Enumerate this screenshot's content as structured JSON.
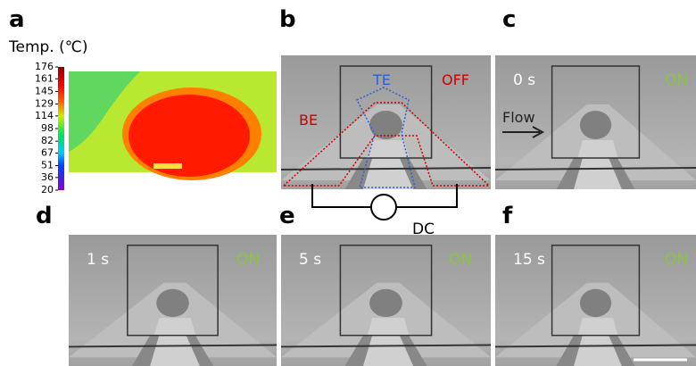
{
  "panels": [
    {
      "label": "a",
      "colorbar": {
        "title": "Temp. (℃)",
        "ticks": [
          176,
          161,
          145,
          129,
          114,
          98,
          82,
          67,
          51,
          36,
          20
        ]
      }
    },
    {
      "label": "b",
      "annotations": [
        "TE",
        "OFF",
        "BE"
      ],
      "circuit": "DC"
    },
    {
      "label": "c",
      "time": "0 s",
      "state": "ON",
      "flow": "Flow"
    },
    {
      "label": "d",
      "time": "1 s",
      "state": "ON"
    },
    {
      "label": "e",
      "time": "5 s",
      "state": "ON"
    },
    {
      "label": "f",
      "time": "15 s",
      "state": "ON"
    }
  ]
}
